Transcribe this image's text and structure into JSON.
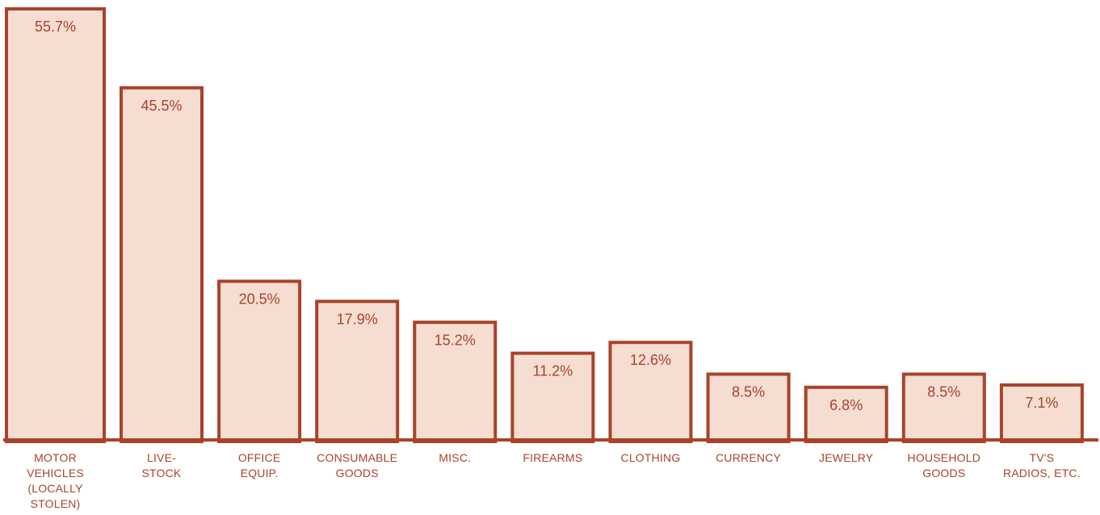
{
  "chart_data": {
    "type": "bar",
    "title": "",
    "xlabel": "",
    "ylabel": "",
    "ylim": [
      0,
      55.7
    ],
    "grid": false,
    "categories": [
      "MOTOR VEHICLES (LOCALLY STOLEN)",
      "LIVE-STOCK",
      "OFFICE EQUIP.",
      "CONSUMABLE GOODS",
      "MISC.",
      "FIREARMS",
      "CLOTHING",
      "CURRENCY",
      "JEWELRY",
      "HOUSEHOLD GOODS",
      "TV'S RADIOS, ETC."
    ],
    "category_lines": [
      [
        "MOTOR",
        "VEHICLES",
        "(LOCALLY",
        "STOLEN)"
      ],
      [
        "LIVE-",
        "STOCK"
      ],
      [
        "OFFICE",
        "EQUIP."
      ],
      [
        "CONSUMABLE",
        "GOODS"
      ],
      [
        "MISC."
      ],
      [
        "FIREARMS"
      ],
      [
        "CLOTHING"
      ],
      [
        "CURRENCY"
      ],
      [
        "JEWELRY"
      ],
      [
        "HOUSEHOLD",
        "GOODS"
      ],
      [
        "TV'S",
        "RADIOS, ETC."
      ]
    ],
    "values": [
      55.7,
      45.5,
      20.5,
      17.9,
      15.2,
      11.2,
      12.6,
      8.5,
      6.8,
      8.5,
      7.1
    ],
    "value_labels": [
      "55.7%",
      "45.5%",
      "20.5%",
      "17.9%",
      "15.2%",
      "11.2%",
      "12.6%",
      "8.5%",
      "6.8%",
      "8.5%",
      "7.1%"
    ],
    "colors": {
      "bar_fill": "#f5ddd2",
      "bar_stroke": "#a8432a",
      "text": "#a8432a"
    }
  }
}
